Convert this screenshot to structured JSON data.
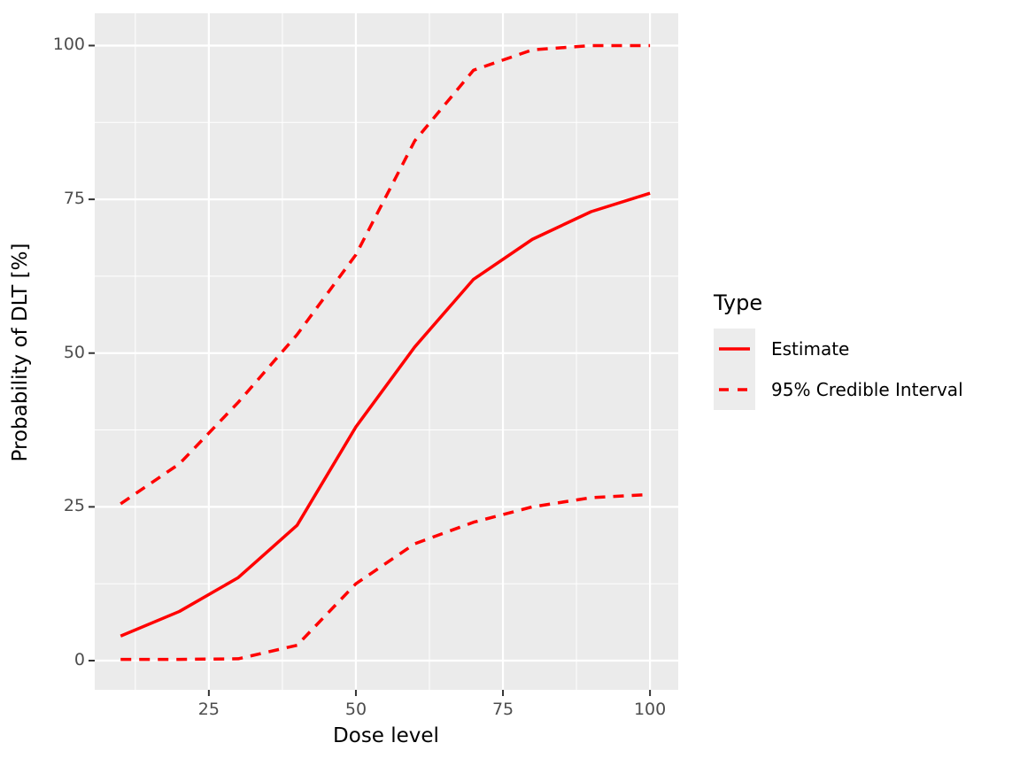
{
  "figure": {
    "background": "#FFFFFF",
    "panel_background": "#EBEBEB",
    "grid_color": "#FFFFFF",
    "tick_mark_color": "#333333",
    "tick_label_color": "#4D4D4D",
    "axis_title_color": "#000000",
    "line_color": "#FF0000"
  },
  "chart_data": {
    "type": "line",
    "title": "",
    "xlabel": "Dose level",
    "ylabel": "Probability of DLT [%]",
    "x": [
      10,
      20,
      30,
      40,
      50,
      60,
      70,
      80,
      90,
      100
    ],
    "series": [
      {
        "name": "Estimate",
        "style": "solid",
        "color": "#FF0000",
        "values": [
          4,
          8,
          13.5,
          22,
          38,
          51,
          62,
          68.5,
          73,
          76
        ]
      },
      {
        "name": "95% Credible Interval (upper)",
        "style": "dashed",
        "color": "#FF0000",
        "values": [
          25.5,
          32,
          42,
          53,
          66,
          84.5,
          96,
          99.3,
          100,
          100
        ]
      },
      {
        "name": "95% Credible Interval (lower)",
        "style": "dashed",
        "color": "#FF0000",
        "values": [
          0.2,
          0.2,
          0.3,
          2.5,
          12.5,
          19,
          22.5,
          25,
          26.5,
          27
        ]
      }
    ],
    "x_ticks": [
      25,
      50,
      75,
      100
    ],
    "y_ticks": [
      0,
      25,
      50,
      75,
      100
    ],
    "x_minor": [
      12.5,
      37.5,
      62.5,
      87.5
    ],
    "y_minor": [
      12.5,
      37.5,
      62.5,
      87.5
    ],
    "xlim": [
      5.6,
      104.8
    ],
    "ylim": [
      -4.75,
      105.25
    ],
    "grid": true,
    "legend": {
      "title": "Type",
      "position": "right",
      "entries": [
        {
          "label": "Estimate",
          "style": "solid"
        },
        {
          "label": "95% Credible Interval",
          "style": "dashed"
        }
      ]
    }
  }
}
